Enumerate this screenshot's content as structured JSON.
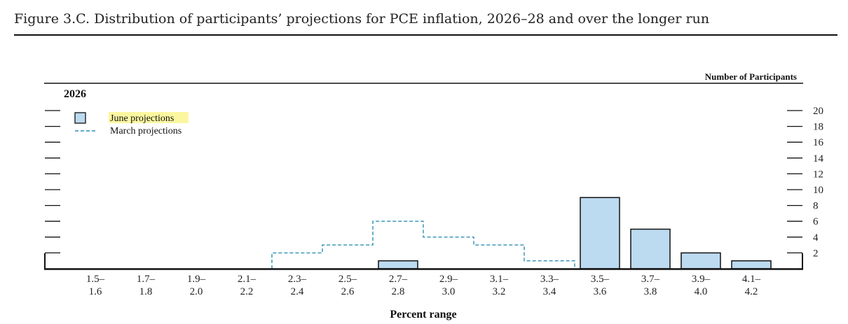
{
  "figure": {
    "title": "Figure 3.C. Distribution of participants’ projections for PCE inflation, 2026–28 and over the longer run"
  },
  "chart_data": {
    "type": "bar",
    "panel": "2026",
    "xlabel": "Percent range",
    "ylabel": "Number of Participants",
    "ylim": [
      0,
      20
    ],
    "yticks": [
      2,
      4,
      6,
      8,
      10,
      12,
      14,
      16,
      18,
      20
    ],
    "categories": [
      [
        "1.5–",
        "1.6"
      ],
      [
        "1.7–",
        "1.8"
      ],
      [
        "1.9–",
        "2.0"
      ],
      [
        "2.1–",
        "2.2"
      ],
      [
        "2.3–",
        "2.4"
      ],
      [
        "2.5–",
        "2.6"
      ],
      [
        "2.7–",
        "2.8"
      ],
      [
        "2.9–",
        "3.0"
      ],
      [
        "3.1–",
        "3.2"
      ],
      [
        "3.3–",
        "3.4"
      ],
      [
        "3.5–",
        "3.6"
      ],
      [
        "3.7–",
        "3.8"
      ],
      [
        "3.9–",
        "4.0"
      ],
      [
        "4.1–",
        "4.2"
      ]
    ],
    "series": [
      {
        "name": "June projections",
        "style": "bar",
        "color": "#bcdaf0",
        "values": [
          0,
          0,
          0,
          0,
          0,
          0,
          1,
          0,
          0,
          0,
          9,
          5,
          2,
          1
        ]
      },
      {
        "name": "March projections",
        "style": "dashed-step",
        "color": "#2f8fb5",
        "values": [
          0,
          0,
          0,
          0,
          2,
          3,
          6,
          4,
          3,
          1,
          0,
          0,
          0,
          0
        ]
      }
    ],
    "legend_position": "top-left"
  }
}
